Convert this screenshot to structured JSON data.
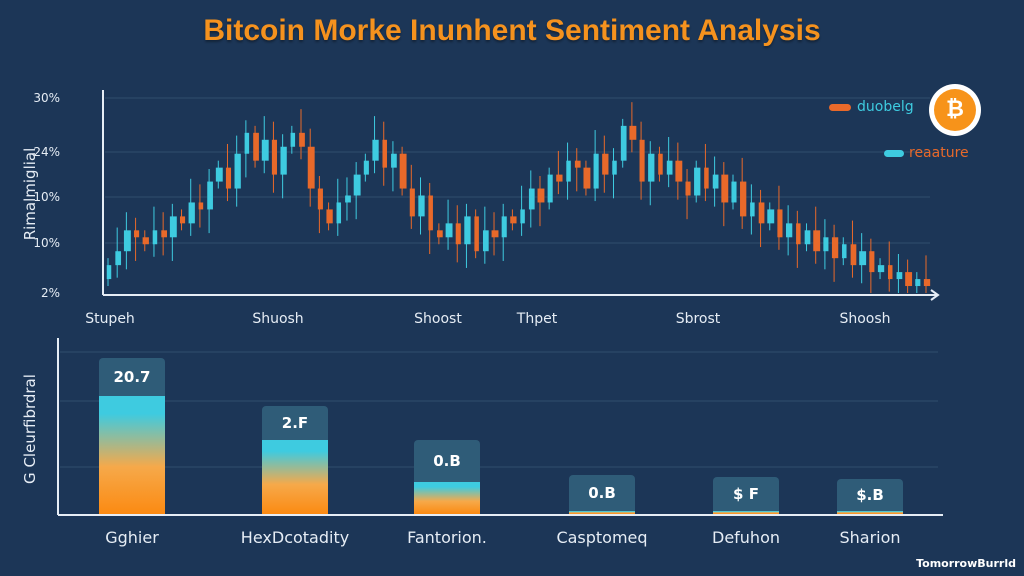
{
  "title": "Bitcoin Morke Inunhent Sentiment Analysis",
  "colors": {
    "background": "#1c3657",
    "title": "#f5921e",
    "up": "#3ecbe0",
    "down": "#e8692a",
    "bitcoin": "#f7931a"
  },
  "logo_icon": "bitcoin-icon",
  "logo_text": "₿",
  "watermark": "TomorrowBurrld",
  "chart_data": [
    {
      "type": "candlestick",
      "ylabel": "Rimalmiglial",
      "yticks": [
        "30%",
        "24%",
        "10%",
        "10%",
        "2%"
      ],
      "ylim": [
        2,
        30
      ],
      "xticks": [
        "Stupeh",
        "Shuosh",
        "Shoost",
        "Thpet",
        "Sbrost",
        "Shoosh"
      ],
      "grid": true,
      "legend": [
        {
          "label": "duobelg",
          "swatch": "#e8692a",
          "text_color": "#3ecbe0"
        },
        {
          "label": "reaature",
          "swatch": "#3ecbe0",
          "text_color": "#e8692a"
        }
      ],
      "closes": [
        6,
        8,
        11,
        10,
        9,
        11,
        10,
        13,
        12,
        15,
        14,
        18,
        20,
        17,
        22,
        25,
        21,
        24,
        19,
        23,
        25,
        23,
        17,
        14,
        12,
        15,
        16,
        19,
        21,
        24,
        20,
        22,
        17,
        13,
        16,
        11,
        10,
        12,
        9,
        13,
        8,
        11,
        10,
        13,
        12,
        14,
        17,
        15,
        19,
        18,
        21,
        20,
        17,
        22,
        19,
        21,
        26,
        24,
        18,
        22,
        19,
        21,
        18,
        16,
        20,
        17,
        19,
        15,
        18,
        13,
        15,
        12,
        14,
        10,
        12,
        9,
        11,
        8,
        10,
        7,
        9,
        6,
        8,
        5,
        6,
        4,
        5,
        3,
        4,
        3
      ]
    },
    {
      "type": "bar",
      "ylabel": "G Cleurfibrdral",
      "categories": [
        "Gghier",
        "HexDcotadity",
        "Fantorion.",
        "Casptomeq",
        "Defuhon",
        "Sharion"
      ],
      "value_labels": [
        "20.7",
        "2.F",
        "0.B",
        "0.B",
        "$ F",
        "$.B"
      ],
      "fill_fraction": [
        0.69,
        0.43,
        0.19,
        0.02,
        0.02,
        0.02
      ],
      "grid": true
    }
  ]
}
